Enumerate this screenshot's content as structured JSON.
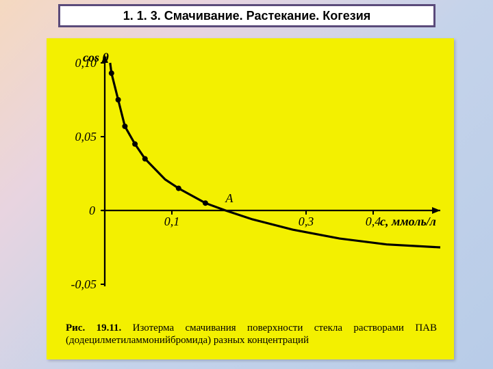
{
  "title": "1. 1. 3. Смачивание. Растекание. Когезия",
  "chart": {
    "type": "line",
    "background_color": "#f3f000",
    "curve_color": "#000000",
    "point_color": "#000000",
    "axis_color": "#000000",
    "line_width": 3.2,
    "axis_width": 2.3,
    "marker_radius": 4,
    "ylabel": "cos θ",
    "xlabel": "c, ммоль/л",
    "point_label": "A",
    "ylim": [
      -0.05,
      0.1
    ],
    "xlim": [
      0,
      0.5
    ],
    "xticks": [
      {
        "v": 0.1,
        "label": "0,1"
      },
      {
        "v": 0.3,
        "label": "0,3"
      },
      {
        "v": 0.4,
        "label": "0,4"
      }
    ],
    "yticks": [
      {
        "v": -0.05,
        "label": "-0,05"
      },
      {
        "v": 0.0,
        "label": "0"
      },
      {
        "v": 0.05,
        "label": "0,05"
      },
      {
        "v": 0.1,
        "label": "0,10"
      }
    ],
    "points": [
      {
        "x": 0.01,
        "y": 0.093
      },
      {
        "x": 0.02,
        "y": 0.075
      },
      {
        "x": 0.03,
        "y": 0.057
      },
      {
        "x": 0.045,
        "y": 0.045
      },
      {
        "x": 0.06,
        "y": 0.035
      },
      {
        "x": 0.11,
        "y": 0.015
      },
      {
        "x": 0.15,
        "y": 0.005
      }
    ],
    "curve": [
      {
        "x": 0.008,
        "y": 0.1
      },
      {
        "x": 0.01,
        "y": 0.093
      },
      {
        "x": 0.02,
        "y": 0.075
      },
      {
        "x": 0.03,
        "y": 0.057
      },
      {
        "x": 0.045,
        "y": 0.045
      },
      {
        "x": 0.06,
        "y": 0.035
      },
      {
        "x": 0.09,
        "y": 0.021
      },
      {
        "x": 0.11,
        "y": 0.015
      },
      {
        "x": 0.15,
        "y": 0.005
      },
      {
        "x": 0.18,
        "y": 0.0
      },
      {
        "x": 0.22,
        "y": -0.006
      },
      {
        "x": 0.28,
        "y": -0.013
      },
      {
        "x": 0.35,
        "y": -0.019
      },
      {
        "x": 0.42,
        "y": -0.023
      },
      {
        "x": 0.5,
        "y": -0.025
      }
    ]
  },
  "caption": {
    "fig_label": "Рис. 19.11.",
    "text_1": " Изотерма смачивания поверхности стекла растворами ПАВ (додецилметиламмонийбромида) разных концентраций"
  },
  "slide_bg_gradient": [
    "#f5d9c0",
    "#e8d4e0",
    "#c5d3ea",
    "#b8cce8"
  ],
  "title_border_color": "#5a4a7a",
  "title_bg_color": "#ffffff",
  "title_text_color": "#000000"
}
